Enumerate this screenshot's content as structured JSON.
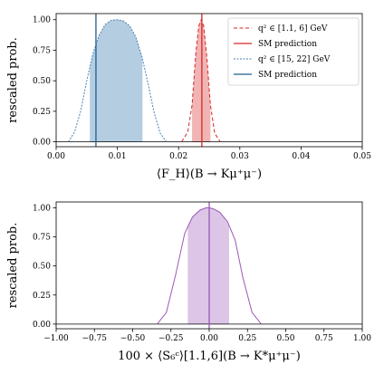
{
  "chart_data": [
    {
      "type": "line",
      "xlabel": "⟨F_H⟩(B → Kμ⁺μ⁻)",
      "ylabel": "rescaled prob.",
      "xlim": [
        0.0,
        0.05
      ],
      "ylim": [
        -0.04,
        1.05
      ],
      "xticks": [
        0.0,
        0.01,
        0.02,
        0.03,
        0.04,
        0.05
      ],
      "xtick_labels": [
        "0.00",
        "0.01",
        "0.02",
        "0.03",
        "0.04",
        "0.05"
      ],
      "yticks": [
        0.0,
        0.25,
        0.5,
        0.75,
        1.0
      ],
      "ytick_labels": [
        "0.00",
        "0.25",
        "0.50",
        "0.75",
        "1.00"
      ],
      "legend_position": "top-right",
      "series": [
        {
          "name": "q² ∈ [1.1, 6] GeV",
          "style": "dashed",
          "color": "#d62728",
          "x": [
            0.0205,
            0.0215,
            0.0222,
            0.0228,
            0.0233,
            0.0237,
            0.0241,
            0.0246,
            0.0252,
            0.0259,
            0.0268
          ],
          "y": [
            0.0,
            0.08,
            0.3,
            0.72,
            0.95,
            1.0,
            0.95,
            0.7,
            0.3,
            0.07,
            0.0
          ],
          "band": [
            0.0222,
            0.0252
          ]
        },
        {
          "name": "SM prediction",
          "style": "solid",
          "color": "#d62728",
          "vline": 0.0238
        },
        {
          "name": "q² ∈ [15, 22] GeV",
          "style": "dotted",
          "color": "#4682b4",
          "x": [
            0.002,
            0.003,
            0.004,
            0.005,
            0.006,
            0.007,
            0.008,
            0.009,
            0.01,
            0.011,
            0.012,
            0.013,
            0.014,
            0.015,
            0.016,
            0.017,
            0.018
          ],
          "y": [
            0.0,
            0.08,
            0.25,
            0.5,
            0.72,
            0.87,
            0.96,
            0.995,
            1.0,
            0.99,
            0.95,
            0.86,
            0.7,
            0.48,
            0.24,
            0.07,
            0.0
          ],
          "band": [
            0.0055,
            0.0141
          ]
        },
        {
          "name": "SM prediction",
          "style": "solid",
          "color": "#1f5f8b",
          "vline": 0.0065
        }
      ]
    },
    {
      "type": "line",
      "xlabel": "100 × ⟨S₆ᶜ⟩[1.1,6](B → K*μ⁺μ⁻)",
      "ylabel": "rescaled prob.",
      "xlim": [
        -1.0,
        1.0
      ],
      "ylim": [
        -0.04,
        1.05
      ],
      "xticks": [
        -1.0,
        -0.75,
        -0.5,
        -0.25,
        0.0,
        0.25,
        0.5,
        0.75,
        1.0
      ],
      "xtick_labels": [
        "−1.00",
        "−0.75",
        "−0.50",
        "−0.25",
        "0.00",
        "0.25",
        "0.50",
        "0.75",
        "1.00"
      ],
      "yticks": [
        0.0,
        0.25,
        0.5,
        0.75,
        1.0
      ],
      "ytick_labels": [
        "0.00",
        "0.25",
        "0.50",
        "0.75",
        "1.00"
      ],
      "series": [
        {
          "style": "solid",
          "color": "#9b59b6",
          "x": [
            -0.34,
            -0.28,
            -0.22,
            -0.16,
            -0.11,
            -0.06,
            -0.02,
            0.0,
            0.03,
            0.07,
            0.12,
            0.17,
            0.22,
            0.28,
            0.34
          ],
          "y": [
            0.0,
            0.1,
            0.42,
            0.78,
            0.92,
            0.98,
            1.0,
            1.0,
            0.99,
            0.96,
            0.88,
            0.72,
            0.4,
            0.1,
            0.0
          ],
          "band": [
            -0.14,
            0.13
          ],
          "vline": 0.0
        }
      ]
    }
  ]
}
